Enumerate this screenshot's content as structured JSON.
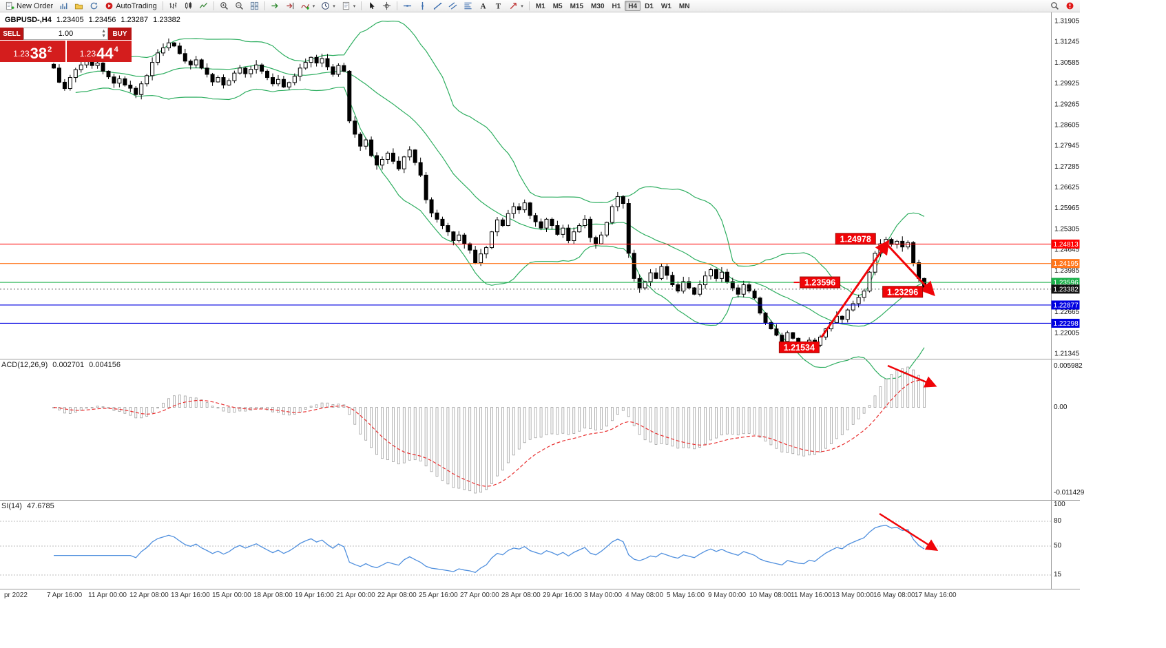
{
  "toolbar": {
    "items": [
      {
        "type": "button",
        "name": "new-order-button",
        "icon": "new-order",
        "label": "New Order"
      },
      {
        "type": "icon",
        "name": "new-chart-button",
        "icon": "new-chart"
      },
      {
        "type": "icon",
        "name": "profiles-button",
        "icon": "profiles"
      },
      {
        "type": "icon",
        "name": "refresh-button",
        "icon": "refresh"
      },
      {
        "type": "button",
        "name": "autotrading-button",
        "icon": "autotrading",
        "label": "AutoTrading"
      },
      {
        "type": "sep"
      },
      {
        "type": "icon",
        "name": "bar-chart-button",
        "icon": "bars"
      },
      {
        "type": "icon",
        "name": "candlestick-chart-button",
        "icon": "candles"
      },
      {
        "type": "icon",
        "name": "line-chart-button",
        "icon": "line"
      },
      {
        "type": "sep"
      },
      {
        "type": "icon",
        "name": "zoom-in-button",
        "icon": "zoom-in"
      },
      {
        "type": "icon",
        "name": "zoom-out-button",
        "icon": "zoom-out"
      },
      {
        "type": "icon",
        "name": "tile-windows-button",
        "icon": "tile"
      },
      {
        "type": "sep"
      },
      {
        "type": "icon",
        "name": "auto-scroll-button",
        "icon": "auto-scroll"
      },
      {
        "type": "icon",
        "name": "chart-shift-button",
        "icon": "shift"
      },
      {
        "type": "icon",
        "name": "indicators-button",
        "icon": "indicators",
        "dropdown": true
      },
      {
        "type": "icon",
        "name": "periods-button",
        "icon": "periods",
        "dropdown": true
      },
      {
        "type": "icon",
        "name": "templates-button",
        "icon": "templates",
        "dropdown": true
      },
      {
        "type": "sep"
      },
      {
        "type": "icon",
        "name": "cursor-button",
        "icon": "cursor"
      },
      {
        "type": "icon",
        "name": "crosshair-button",
        "icon": "crosshair"
      },
      {
        "type": "sep"
      },
      {
        "type": "icon",
        "name": "horizontal-line-button",
        "icon": "hline"
      },
      {
        "type": "icon",
        "name": "vertical-line-button",
        "icon": "vline"
      },
      {
        "type": "icon",
        "name": "trendline-button",
        "icon": "trendline"
      },
      {
        "type": "icon",
        "name": "equidistant-channel-button",
        "icon": "channel"
      },
      {
        "type": "icon",
        "name": "fibonacci-button",
        "icon": "fibonacci"
      },
      {
        "type": "icon",
        "name": "text-button",
        "icon": "text"
      },
      {
        "type": "icon",
        "name": "text-label-button",
        "icon": "label"
      },
      {
        "type": "icon",
        "name": "arrows-button",
        "icon": "shapes",
        "dropdown": true
      },
      {
        "type": "sep"
      },
      {
        "type": "timeframes"
      },
      {
        "type": "spacer"
      },
      {
        "type": "icon",
        "name": "search-button",
        "icon": "search"
      },
      {
        "type": "icon",
        "name": "alerts-button",
        "icon": "alert"
      }
    ],
    "timeframes": [
      "M1",
      "M5",
      "M15",
      "M30",
      "H1",
      "H4",
      "D1",
      "W1",
      "MN"
    ],
    "active_timeframe": "H4"
  },
  "symbol_header": {
    "symbol": "GBPUSD-,H4",
    "open": "1.23405",
    "high": "1.23456",
    "low": "1.23287",
    "close": "1.23382"
  },
  "trade_panel": {
    "sell_label": "SELL",
    "buy_label": "BUY",
    "volume": "1.00",
    "sell_price_main": "1.23",
    "sell_price_pips": "38",
    "sell_price_frac": "2",
    "buy_price_main": "1.23",
    "buy_price_pips": "44",
    "buy_price_frac": "4"
  },
  "chart_data": {
    "type": "candlestick",
    "symbol": "GBPUSD",
    "timeframe": "H4",
    "ohlc_display": {
      "open": 1.23405,
      "high": 1.23456,
      "low": 1.23287,
      "close": 1.23382
    },
    "ylim": [
      1.21345,
      1.31905
    ],
    "y_ticks": [
      "1.31905",
      "1.31245",
      "1.30585",
      "1.29925",
      "1.29265",
      "1.28605",
      "1.27945",
      "1.27285",
      "1.26625",
      "1.25965",
      "1.25305",
      "1.24645",
      "1.23985",
      "1.23325",
      "1.22665",
      "1.22005",
      "1.21345"
    ],
    "time_labels": [
      "pr 2022",
      "7 Apr 16:00",
      "11 Apr 00:00",
      "12 Apr 08:00",
      "13 Apr 16:00",
      "15 Apr 00:00",
      "18 Apr 08:00",
      "19 Apr 16:00",
      "21 Apr 00:00",
      "22 Apr 08:00",
      "25 Apr 16:00",
      "27 Apr 00:00",
      "28 Apr 08:00",
      "29 Apr 16:00",
      "3 May 00:00",
      "4 May 08:00",
      "5 May 16:00",
      "9 May 00:00",
      "10 May 08:00",
      "11 May 16:00",
      "13 May 00:00",
      "16 May 08:00",
      "17 May 16:00"
    ],
    "closes": [
      1.304,
      1.2995,
      1.2975,
      1.301,
      1.3035,
      1.305,
      1.3062,
      1.3048,
      1.3056,
      1.303,
      1.3012,
      1.2992,
      1.3006,
      1.2986,
      1.2976,
      1.2956,
      1.299,
      1.3016,
      1.3058,
      1.3088,
      1.3104,
      1.312,
      1.311,
      1.3086,
      1.3062,
      1.305,
      1.3066,
      1.304,
      1.302,
      1.2996,
      1.301,
      1.2986,
      1.3,
      1.3024,
      1.304,
      1.3022,
      1.3036,
      1.305,
      1.303,
      1.301,
      1.299,
      1.3004,
      1.298,
      1.2994,
      1.3014,
      1.304,
      1.3058,
      1.3074,
      1.3056,
      1.307,
      1.3044,
      1.302,
      1.3048,
      1.303,
      1.2872,
      1.283,
      1.2792,
      1.2812,
      1.2762,
      1.2732,
      1.275,
      1.277,
      1.2744,
      1.272,
      1.2758,
      1.278,
      1.274,
      1.27,
      1.2622,
      1.258,
      1.256,
      1.254,
      1.252,
      1.2492,
      1.251,
      1.2482,
      1.2462,
      1.2422,
      1.245,
      1.247,
      1.252,
      1.2558,
      1.254,
      1.2578,
      1.26,
      1.259,
      1.2612,
      1.2572,
      1.2552,
      1.2532,
      1.256,
      1.254,
      1.2512,
      1.2532,
      1.2492,
      1.252,
      1.254,
      1.256,
      1.2502,
      1.2482,
      1.251,
      1.255,
      1.26,
      1.2632,
      1.261,
      1.2452,
      1.2372,
      1.2342,
      1.2362,
      1.239,
      1.2372,
      1.241,
      1.2382,
      1.2352,
      1.2332,
      1.2362,
      1.2342,
      1.2322,
      1.2352,
      1.238,
      1.24,
      1.2372,
      1.2392,
      1.2362,
      1.2342,
      1.2322,
      1.2352,
      1.2332,
      1.231,
      1.2262,
      1.2232,
      1.2212,
      1.2192,
      1.2172,
      1.22,
      1.2182,
      1.2162,
      1.2155,
      1.2176,
      1.216,
      1.2186,
      1.2212,
      1.2232,
      1.2252,
      1.2242,
      1.2272,
      1.2292,
      1.2312,
      1.2332,
      1.2392,
      1.2452,
      1.2482,
      1.2496,
      1.248,
      1.249,
      1.2472,
      1.2486,
      1.2422,
      1.2372,
      1.23382
    ],
    "overlays": {
      "bollinger": {
        "period": 20,
        "deviation": 2,
        "color": "#2eae60"
      }
    },
    "h_lines": [
      {
        "price": 1.24813,
        "color": "#ff0000",
        "tag": "1.24813"
      },
      {
        "price": 1.24195,
        "color": "#ff7519",
        "tag": "1.24195"
      },
      {
        "price": 1.23596,
        "color": "#1cb04b",
        "tag": "1.23596"
      },
      {
        "price": 1.22877,
        "color": "#0000e1",
        "tag": "1.22877"
      },
      {
        "price": 1.22298,
        "color": "#0000e1",
        "tag": "1.22298"
      }
    ],
    "current_price": {
      "price": 1.23382,
      "tag": "1.23382",
      "color": "#111111"
    },
    "indicators": {
      "macd": {
        "params": [
          12,
          26,
          9
        ],
        "value_main": 0.002701,
        "value_signal": 0.004156,
        "scale_max": 0.005982,
        "scale_min": -0.011429
      },
      "rsi": {
        "period": 14,
        "value": 47.6785,
        "levels": [
          80,
          50,
          15
        ]
      }
    }
  },
  "macd_panel": {
    "header": "ACD(12,26,9)",
    "value_main": "0.002701",
    "value_signal": "0.004156",
    "scale_top": "0.005982",
    "scale_zero": "0.00",
    "scale_bottom": "-0.011429"
  },
  "rsi_panel": {
    "header": "SI(14)",
    "value": "47.6785",
    "scale": [
      "100",
      "80",
      "50",
      "15"
    ]
  },
  "annotations": {
    "price_labels": [
      {
        "text": "1.24978",
        "bar": 142.8,
        "price": 1.24978,
        "tick": false
      },
      {
        "text": "1.23596",
        "bar": 136.3,
        "price": 1.23596,
        "tick": true
      },
      {
        "text": "1.23296",
        "bar": 151.4,
        "price": 1.23296,
        "tick": false
      },
      {
        "text": "1.21534",
        "bar": 132.5,
        "price": 1.21534,
        "tick": false
      }
    ],
    "arrows": [
      {
        "panel": "price",
        "from_bar": 140.2,
        "from_price": 1.2185,
        "to_bar": 152.3,
        "to_price": 1.2487
      },
      {
        "panel": "price",
        "from_bar": 152.3,
        "from_price": 1.2478,
        "to_bar": 160.6,
        "to_price": 1.2323
      },
      {
        "panel": "macd",
        "from": [
          1289,
          531
        ],
        "to": [
          1357,
          560
        ]
      },
      {
        "panel": "rsi",
        "from": [
          1277,
          746
        ],
        "to": [
          1359,
          798
        ]
      }
    ],
    "arrow_color": "#f00408"
  }
}
